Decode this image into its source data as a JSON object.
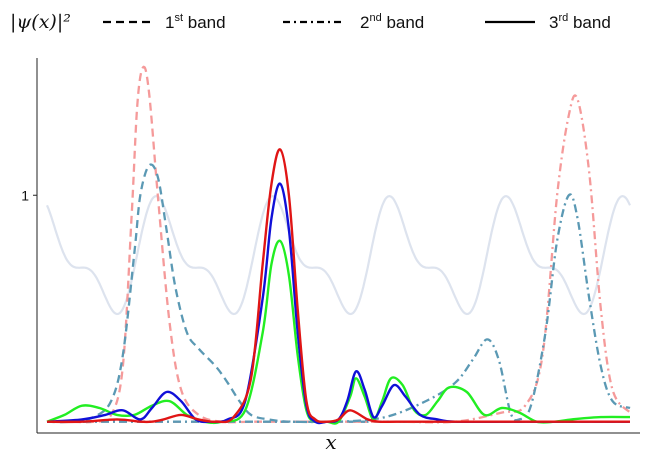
{
  "chart_data": {
    "type": "line",
    "xlabel": "x",
    "ylabel": "|ψ(x)|²",
    "xlim": [
      0,
      10
    ],
    "ylim": [
      0,
      1.6
    ],
    "y_ticks": [
      {
        "value": 1,
        "label": "1"
      }
    ],
    "grid": false,
    "legend": {
      "placement": "top",
      "entries": [
        {
          "name": "1st band",
          "ordinal": "1",
          "sup": "st",
          "rest": " band",
          "style": "dashed"
        },
        {
          "name": "2nd band",
          "ordinal": "2",
          "sup": "nd",
          "rest": " band",
          "style": "dashdot"
        },
        {
          "name": "3rd band",
          "ordinal": "3",
          "sup": "rd",
          "rest": " band",
          "style": "solid"
        }
      ]
    },
    "colors": {
      "potential": "#dde3ee",
      "band1_light": "#f59a9a",
      "band1_dark": "#5b99b4",
      "band3_red": "#e01515",
      "band3_blue": "#1010d8",
      "band3_green": "#22ee22"
    },
    "potential": {
      "baseline": 0.72,
      "amplitudes": [
        0.2,
        0.1
      ],
      "period": 2
    },
    "series": [
      {
        "id": "band1-light",
        "style": "dashed",
        "color": "#f59a9a",
        "x": [
          0,
          0.4,
          0.8,
          1.1,
          1.3,
          1.45,
          1.55,
          1.65,
          1.75,
          1.9,
          2.1,
          2.3,
          2.6,
          3.0,
          3.5,
          4,
          5,
          6,
          7,
          8,
          8.5,
          9,
          9.5,
          10
        ],
        "y": [
          0.01,
          0.01,
          0.01,
          0.04,
          0.25,
          0.9,
          1.4,
          1.56,
          1.45,
          1.0,
          0.45,
          0.15,
          0.04,
          0.01,
          0.01,
          0.01,
          0.01,
          0.01,
          0.01,
          0.01,
          0.01,
          0.01,
          0.01,
          0.01
        ]
      },
      {
        "id": "band1-dark",
        "style": "dashed",
        "color": "#5b99b4",
        "x": [
          0,
          0.4,
          0.8,
          1.1,
          1.3,
          1.5,
          1.6,
          1.75,
          1.9,
          2.05,
          2.2,
          2.4,
          2.6,
          2.9,
          3.1,
          3.3,
          3.5,
          3.8,
          4.2,
          5,
          6,
          7,
          8,
          8.5,
          9,
          9.5,
          10
        ],
        "y": [
          0.01,
          0.01,
          0.03,
          0.1,
          0.3,
          0.75,
          1.0,
          1.13,
          1.08,
          0.85,
          0.6,
          0.4,
          0.33,
          0.25,
          0.18,
          0.1,
          0.04,
          0.02,
          0.01,
          0.01,
          0.01,
          0.01,
          0.01,
          0.01,
          0.01,
          0.01,
          0.01
        ]
      },
      {
        "id": "band2-light",
        "style": "dashdot",
        "color": "#f59a9a",
        "x": [
          0,
          1,
          2,
          3,
          4,
          5,
          6,
          7,
          7.8,
          8.2,
          8.5,
          8.75,
          8.95,
          9.1,
          9.3,
          9.5,
          9.7,
          10
        ],
        "y": [
          0.01,
          0.01,
          0.01,
          0.01,
          0.01,
          0.01,
          0.01,
          0.01,
          0.05,
          0.08,
          0.3,
          1.0,
          1.35,
          1.42,
          1.1,
          0.5,
          0.15,
          0.05
        ]
      },
      {
        "id": "band2-dark",
        "style": "dashdot",
        "color": "#5b99b4",
        "x": [
          0,
          1,
          2,
          3,
          4,
          5,
          5.8,
          6.5,
          7,
          7.3,
          7.55,
          7.75,
          7.95,
          8.1,
          8.3,
          8.55,
          8.75,
          8.95,
          9.1,
          9.3,
          9.5,
          9.7,
          10
        ],
        "y": [
          0.01,
          0.01,
          0.01,
          0.01,
          0.01,
          0.01,
          0.03,
          0.1,
          0.18,
          0.28,
          0.37,
          0.28,
          0.05,
          0.02,
          0.08,
          0.4,
          0.8,
          1.0,
          0.9,
          0.55,
          0.25,
          0.1,
          0.07
        ]
      },
      {
        "id": "band3-green",
        "style": "solid",
        "color": "#22ee22",
        "x": [
          0,
          0.3,
          0.6,
          0.9,
          1.2,
          1.5,
          1.8,
          2.1,
          2.4,
          2.7,
          3.0,
          3.4,
          3.7,
          3.85,
          4.0,
          4.15,
          4.3,
          4.45,
          4.6,
          4.8,
          5.0,
          5.2,
          5.3,
          5.45,
          5.6,
          5.75,
          5.9,
          6.1,
          6.3,
          6.5,
          6.7,
          6.9,
          7.2,
          7.5,
          7.8,
          8.1,
          8.4,
          8.7,
          9.0,
          9.5,
          10
        ],
        "y": [
          0.01,
          0.04,
          0.08,
          0.07,
          0.04,
          0.04,
          0.08,
          0.1,
          0.04,
          0.01,
          0.01,
          0.06,
          0.4,
          0.7,
          0.8,
          0.65,
          0.3,
          0.06,
          0.01,
          0.01,
          0.01,
          0.12,
          0.2,
          0.12,
          0.02,
          0.1,
          0.2,
          0.17,
          0.06,
          0.04,
          0.1,
          0.16,
          0.14,
          0.04,
          0.07,
          0.05,
          0.01,
          0.01,
          0.02,
          0.03,
          0.03
        ]
      },
      {
        "id": "band3-blue",
        "style": "solid",
        "color": "#1010d8",
        "x": [
          0,
          0.6,
          1.0,
          1.3,
          1.6,
          1.8,
          2.05,
          2.3,
          2.55,
          2.8,
          3.1,
          3.4,
          3.7,
          3.85,
          4.0,
          4.15,
          4.3,
          4.45,
          4.6,
          4.8,
          5.0,
          5.15,
          5.3,
          5.45,
          5.6,
          5.75,
          5.95,
          6.15,
          6.4,
          6.7,
          7,
          8,
          9,
          10
        ],
        "y": [
          0.01,
          0.02,
          0.04,
          0.06,
          0.02,
          0.07,
          0.14,
          0.1,
          0.02,
          0.01,
          0.02,
          0.1,
          0.55,
          0.9,
          1.05,
          0.85,
          0.4,
          0.08,
          0.01,
          0.01,
          0.02,
          0.1,
          0.23,
          0.15,
          0.03,
          0.08,
          0.17,
          0.12,
          0.04,
          0.02,
          0.01,
          0.01,
          0.01,
          0.01
        ]
      },
      {
        "id": "band3-red",
        "style": "solid",
        "color": "#e01515",
        "x": [
          0,
          0.6,
          1.2,
          1.6,
          1.8,
          2.0,
          2.3,
          2.6,
          2.9,
          3.2,
          3.5,
          3.7,
          3.85,
          4.0,
          4.15,
          4.3,
          4.45,
          4.6,
          4.8,
          5.0,
          5.2,
          5.5,
          5.7,
          6.0,
          6.5,
          7,
          8,
          9,
          10
        ],
        "y": [
          0.01,
          0.01,
          0.02,
          0.01,
          0.01,
          0.02,
          0.04,
          0.02,
          0.01,
          0.03,
          0.2,
          0.7,
          1.05,
          1.2,
          1.0,
          0.5,
          0.1,
          0.02,
          0.01,
          0.02,
          0.06,
          0.02,
          0.01,
          0.01,
          0.01,
          0.01,
          0.01,
          0.01,
          0.01
        ]
      }
    ]
  }
}
